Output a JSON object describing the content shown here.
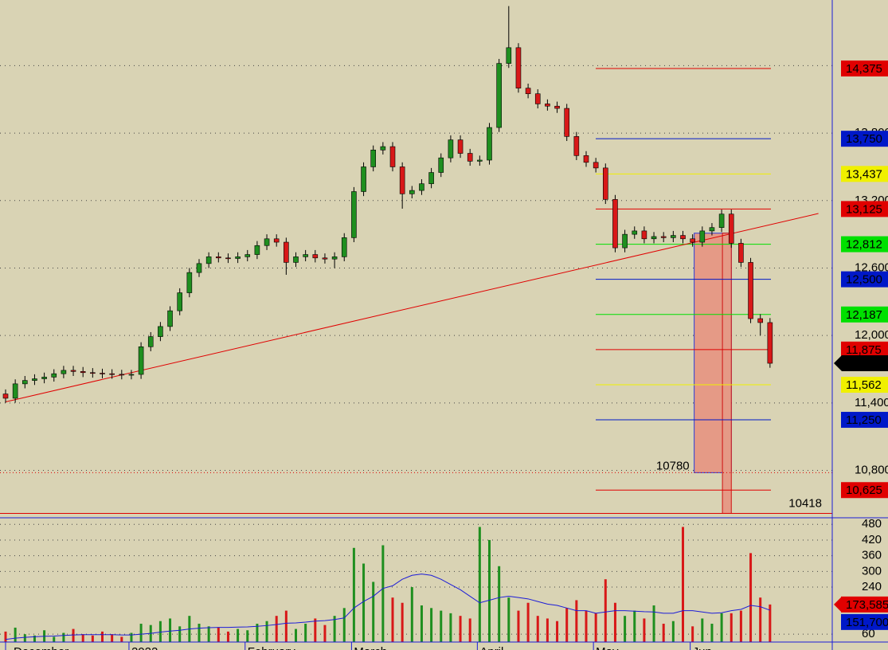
{
  "chart_data": {
    "type": "candlestick",
    "categories": [
      "December",
      null,
      null,
      null,
      null,
      null,
      null,
      null,
      null,
      null,
      null,
      null,
      null,
      "2022",
      null,
      null,
      null,
      null,
      null,
      null,
      null,
      null,
      null,
      null,
      null,
      "February",
      null,
      null,
      null,
      null,
      null,
      null,
      null,
      null,
      null,
      null,
      "March",
      null,
      null,
      null,
      null,
      null,
      null,
      null,
      null,
      null,
      null,
      null,
      null,
      "April",
      null,
      null,
      null,
      null,
      null,
      null,
      null,
      null,
      null,
      null,
      null,
      "May",
      null,
      null,
      null,
      null,
      null,
      null,
      null,
      null,
      null,
      "Jun",
      null,
      null,
      null,
      null,
      null,
      null,
      null,
      null
    ],
    "open": [
      11480,
      11442,
      11570,
      11600,
      11615,
      11630,
      11660,
      11690,
      11680,
      11670,
      11665,
      11660,
      11655,
      11650,
      11654,
      11900,
      11990,
      12080,
      12220,
      12380,
      12560,
      12640,
      12700,
      12690,
      12685,
      12700,
      12720,
      12800,
      12860,
      12830,
      12650,
      12700,
      12720,
      12690,
      12680,
      12700,
      12870,
      13280,
      13500,
      13650,
      13680,
      13500,
      13260,
      13290,
      13350,
      13450,
      13580,
      13740,
      13620,
      13550,
      13560,
      13850,
      14420,
      14560,
      14200,
      14150,
      14060,
      14040,
      14020,
      13770,
      13600,
      13540,
      13490,
      13210,
      12780,
      12900,
      12930,
      12860,
      12880,
      12870,
      12890,
      12860,
      12830,
      12930,
      12960,
      13080,
      12820,
      12650,
      12150,
      12115
    ],
    "high": [
      11520,
      11610,
      11640,
      11655,
      11670,
      11700,
      11730,
      11730,
      11720,
      11710,
      11705,
      11700,
      11695,
      11694,
      11940,
      12030,
      12120,
      12260,
      12420,
      12600,
      12680,
      12740,
      12740,
      12730,
      12740,
      12760,
      12840,
      12900,
      12900,
      12870,
      12740,
      12760,
      12760,
      12730,
      12740,
      12910,
      13320,
      13540,
      13690,
      13720,
      13720,
      13540,
      13330,
      13390,
      13490,
      13620,
      13780,
      13780,
      13660,
      13600,
      13890,
      14460,
      14930,
      14600,
      14240,
      14190,
      14100,
      14080,
      14060,
      13810,
      13640,
      13580,
      13530,
      13250,
      12940,
      12970,
      12970,
      12920,
      12920,
      12930,
      12930,
      12900,
      12970,
      13000,
      13120,
      13120,
      12860,
      12690,
      12190,
      12155
    ],
    "low": [
      11402,
      11402,
      11530,
      11560,
      11575,
      11590,
      11620,
      11640,
      11630,
      11625,
      11620,
      11615,
      11610,
      11610,
      11614,
      11860,
      11950,
      12040,
      12180,
      12340,
      12520,
      12600,
      12650,
      12645,
      12645,
      12660,
      12680,
      12760,
      12790,
      12540,
      12610,
      12660,
      12650,
      12640,
      12600,
      12660,
      12830,
      13240,
      13460,
      13610,
      13460,
      13128,
      13220,
      13250,
      13310,
      13410,
      13540,
      13580,
      13510,
      13510,
      13520,
      13810,
      14380,
      14160,
      14110,
      14020,
      14000,
      13980,
      13730,
      13560,
      13500,
      13450,
      13170,
      12740,
      12740,
      12860,
      12820,
      12820,
      12830,
      12830,
      12820,
      12790,
      12790,
      12890,
      12920,
      12780,
      12610,
      12110,
      12000,
      11713
    ],
    "close": [
      11442,
      11570,
      11600,
      11615,
      11630,
      11660,
      11690,
      11680,
      11670,
      11665,
      11660,
      11655,
      11650,
      11654,
      11900,
      11990,
      12080,
      12220,
      12380,
      12560,
      12640,
      12700,
      12690,
      12685,
      12700,
      12720,
      12800,
      12860,
      12830,
      12650,
      12700,
      12720,
      12690,
      12680,
      12700,
      12870,
      13280,
      13500,
      13650,
      13680,
      13500,
      13260,
      13290,
      13350,
      13450,
      13580,
      13740,
      13620,
      13550,
      13560,
      13850,
      14420,
      14560,
      14200,
      14150,
      14060,
      14040,
      14020,
      13770,
      13600,
      13540,
      13490,
      13210,
      12780,
      12900,
      12930,
      12860,
      12880,
      12870,
      12890,
      12860,
      12830,
      12930,
      12960,
      13080,
      12820,
      12650,
      12150,
      12115,
      11753
    ],
    "up_color": "#1f8f1f",
    "down_color": "#d81818",
    "ylim": [
      10393,
      14984
    ],
    "yticks": [
      {
        "value": 10800,
        "label": "10,800"
      },
      {
        "value": 11400,
        "label": "11,400"
      },
      {
        "value": 12000,
        "label": "12,000"
      },
      {
        "value": 12600,
        "label": "12,600"
      },
      {
        "value": 13200,
        "label": "13,200"
      },
      {
        "value": 13800,
        "label": "13,800"
      },
      {
        "value": 14400,
        "label": "14,400"
      }
    ],
    "grid": true,
    "levels": [
      {
        "value": 14375,
        "label": "14,375",
        "color": "#e00000"
      },
      {
        "value": 13750,
        "label": "13,750",
        "color": "#0018c8"
      },
      {
        "value": 13437,
        "label": "13,437",
        "color": "#f0f000"
      },
      {
        "value": 13125,
        "label": "13,125",
        "color": "#e00000"
      },
      {
        "value": 12812,
        "label": "12,812",
        "color": "#00e000"
      },
      {
        "value": 12500,
        "label": "12,500",
        "color": "#0018c8"
      },
      {
        "value": 12187,
        "label": "12,187",
        "color": "#00e000"
      },
      {
        "value": 11875,
        "label": "11,875",
        "color": "#e00000"
      },
      {
        "value": 11562,
        "label": "11,562",
        "color": "#f0f000"
      },
      {
        "value": 11250,
        "label": "11,250",
        "color": "#0018c8"
      },
      {
        "value": 10625,
        "label": "10,625",
        "color": "#e00000"
      }
    ],
    "last_price": {
      "value": 11753,
      "label": "11,753"
    },
    "trendline": {
      "color": "#e00000",
      "x": [
        0,
        84
      ],
      "y": [
        11410,
        13085
      ]
    },
    "projection": {
      "top": 12910,
      "target1": 10780,
      "target2": 10418
    },
    "annotations": [
      10780,
      10418
    ],
    "volume": {
      "values": [
        70,
        85,
        60,
        55,
        75,
        50,
        65,
        80,
        60,
        55,
        70,
        60,
        50,
        65,
        100,
        95,
        110,
        120,
        90,
        130,
        100,
        90,
        85,
        70,
        80,
        75,
        100,
        110,
        130,
        150,
        80,
        100,
        120,
        95,
        130,
        160,
        390,
        330,
        260,
        400,
        200,
        180,
        240,
        170,
        160,
        150,
        140,
        130,
        120,
        470,
        420,
        320,
        200,
        150,
        180,
        130,
        120,
        110,
        160,
        190,
        150,
        140,
        270,
        180,
        130,
        150,
        120,
        170,
        100,
        110,
        470,
        90,
        120,
        100,
        140,
        140,
        150,
        370,
        200,
        173.585
      ],
      "ma": [
        40,
        45,
        48,
        50,
        52,
        53,
        55,
        57,
        58,
        58,
        58,
        58,
        57,
        57,
        60,
        63,
        68,
        72,
        75,
        80,
        83,
        85,
        86,
        86,
        87,
        88,
        90,
        93,
        97,
        102,
        103,
        106,
        110,
        112,
        116,
        122,
        160,
        185,
        205,
        235,
        245,
        270,
        285,
        290,
        285,
        270,
        250,
        230,
        205,
        180,
        190,
        200,
        205,
        200,
        195,
        185,
        175,
        170,
        160,
        150,
        150,
        140,
        145,
        150,
        150,
        148,
        146,
        145,
        140,
        140,
        150,
        150,
        145,
        140,
        142,
        150,
        155,
        170,
        165,
        151.7
      ],
      "ma_color": "#1c1cd8",
      "ylim": [
        30,
        499
      ],
      "yticks": [
        60,
        240,
        300,
        360,
        420,
        480
      ],
      "tags": [
        {
          "value": 173.585,
          "label": "173,585",
          "color": "#e00000"
        },
        {
          "value": 151.7,
          "label": "151,700",
          "color": "#0018c8"
        }
      ]
    }
  }
}
